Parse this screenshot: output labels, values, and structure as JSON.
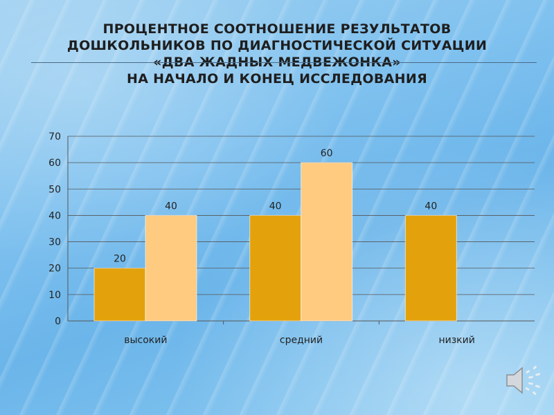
{
  "title_lines": [
    "Процентное соотношение результатов",
    "дошкольников по диагностической ситуации",
    "«Два жадных медвежонка»",
    "на начало и конец исследования"
  ],
  "colors": {
    "series1": "#e3a20c",
    "series2": "#fecb80",
    "axis_text": "#222222",
    "grid": "#555555"
  },
  "speaker_icon": "speaker-icon",
  "chart_data": {
    "type": "bar",
    "categories": [
      "высокий",
      "средний",
      "низкий"
    ],
    "series": [
      {
        "values": [
          20,
          40,
          40
        ]
      },
      {
        "values": [
          40,
          60,
          null
        ]
      }
    ],
    "data_labels": [
      [
        "20",
        "40",
        "40"
      ],
      [
        "40",
        "60",
        ""
      ]
    ],
    "ylim": [
      0,
      70
    ],
    "yticks": [
      0,
      10,
      20,
      30,
      40,
      50,
      60,
      70
    ],
    "grid": true,
    "legend": false
  }
}
